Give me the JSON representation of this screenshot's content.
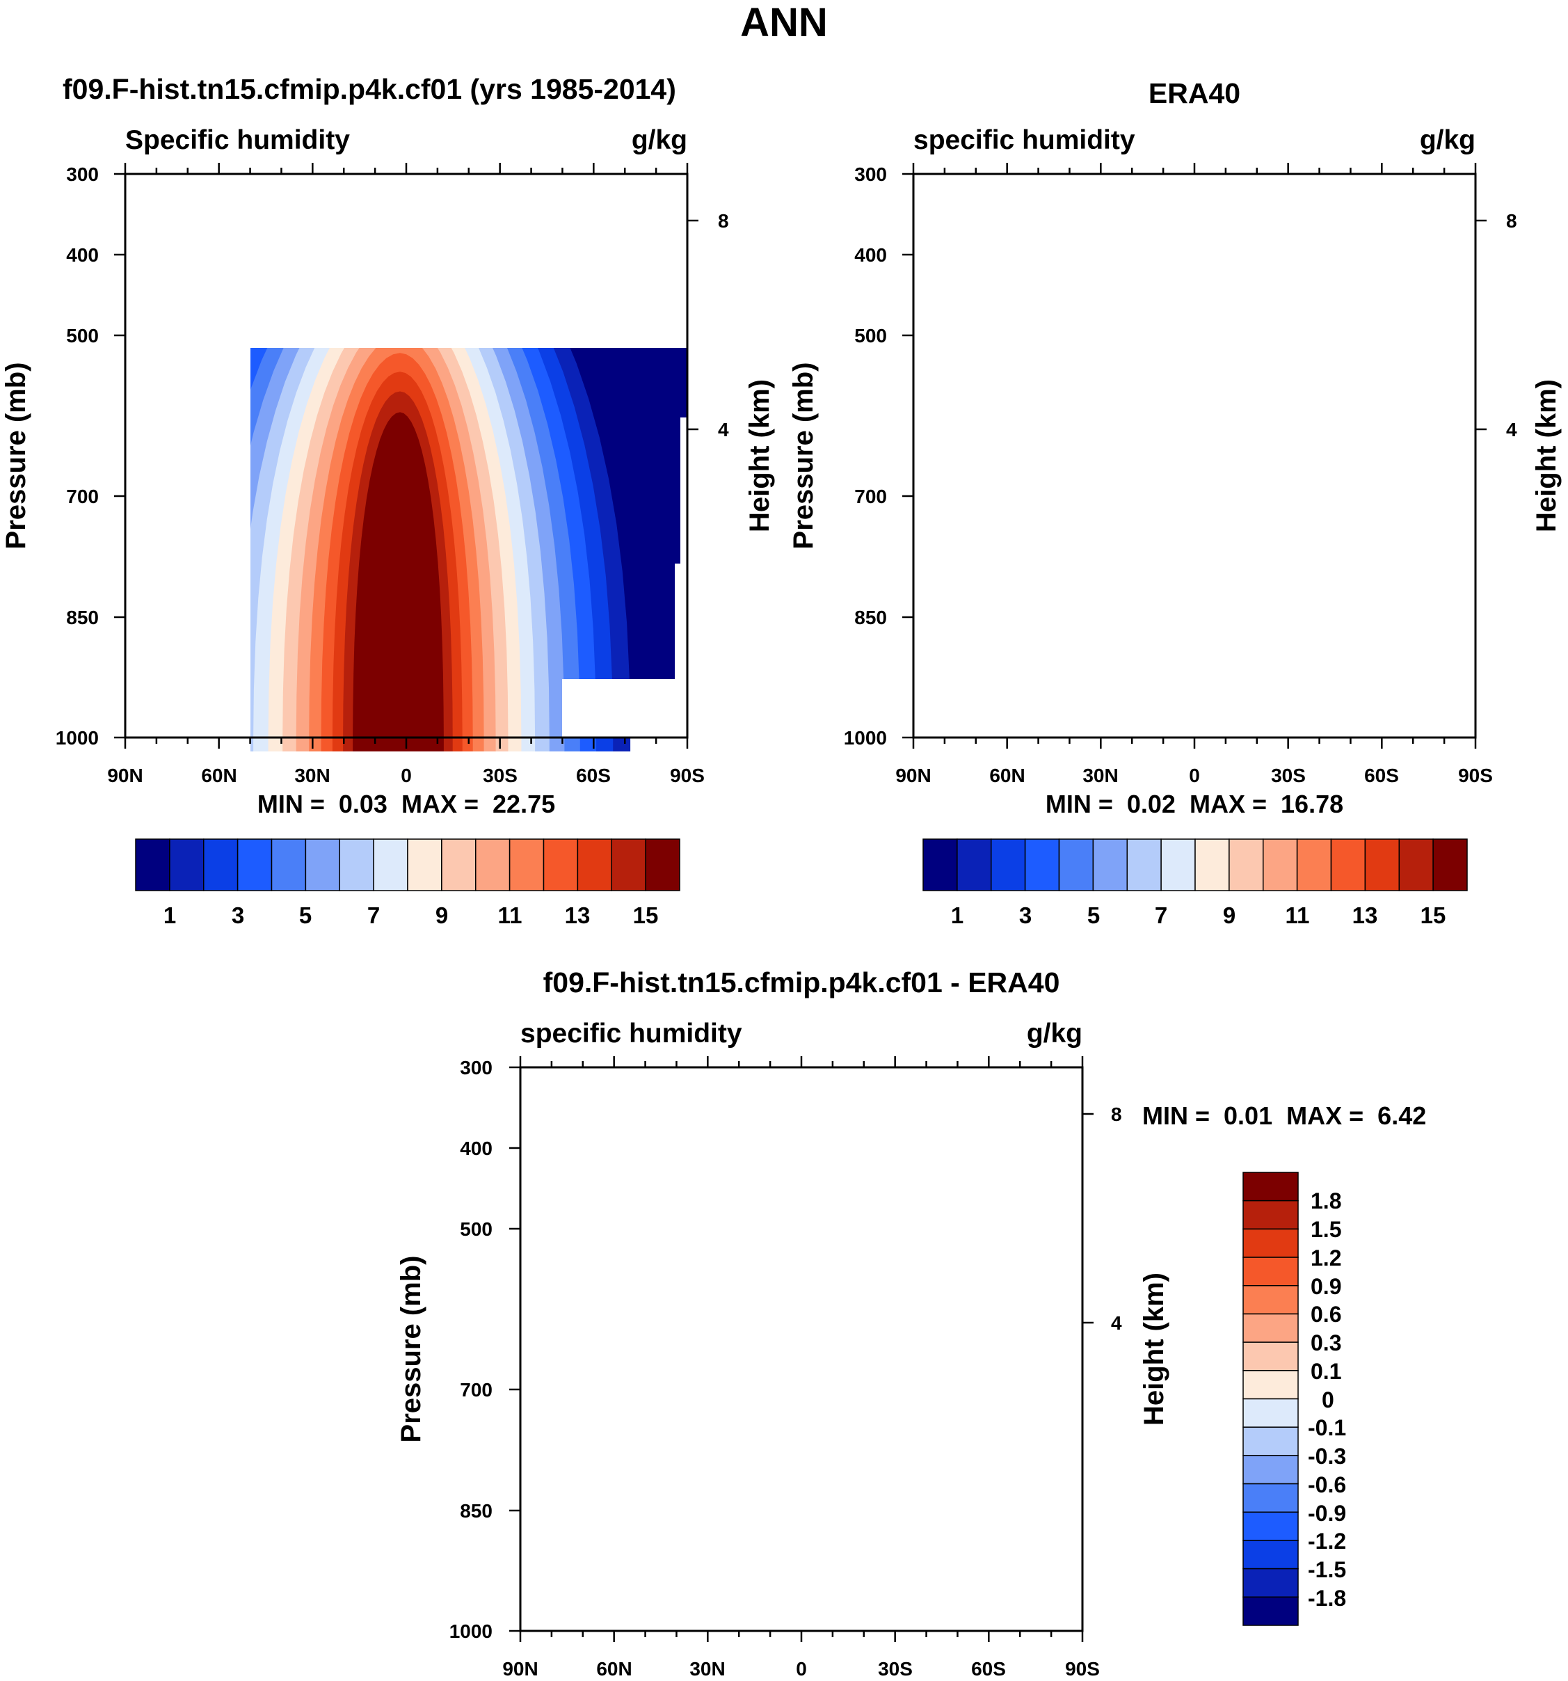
{
  "title": "ANN",
  "chart_data": [
    {
      "type": "contour",
      "title": "f09.F-hist.tn15.cfmip.p4k.cf01 (yrs 1985-2014)",
      "variable": "Specific humidity",
      "units": "g/kg",
      "ylabel": "Pressure (mb)",
      "ylabel_right": "Height (km)",
      "xticks": [
        "90N",
        "60N",
        "30N",
        "0",
        "30S",
        "60S",
        "90S"
      ],
      "yticks": [
        "300",
        "400",
        "500",
        "700",
        "850",
        "1000"
      ],
      "height_ticks": [
        "8",
        "4"
      ],
      "min_label": "MIN =",
      "min_value": "0.03",
      "max_label": "MAX =",
      "max_value": "22.75",
      "peak_value": 22.75,
      "colorbar_ticks": [
        "1",
        "3",
        "5",
        "7",
        "9",
        "11",
        "13",
        "15"
      ]
    },
    {
      "type": "contour",
      "title": "ERA40",
      "variable": "specific humidity",
      "units": "g/kg",
      "ylabel": "Pressure (mb)",
      "ylabel_right": "Height (km)",
      "xticks": [
        "90N",
        "60N",
        "30N",
        "0",
        "30S",
        "60S",
        "90S"
      ],
      "yticks": [
        "300",
        "400",
        "500",
        "700",
        "850",
        "1000"
      ],
      "height_ticks": [
        "8",
        "4"
      ],
      "min_label": "MIN =",
      "min_value": "0.02",
      "max_label": "MAX =",
      "max_value": "16.78",
      "peak_value": 16.78,
      "colorbar_ticks": [
        "1",
        "3",
        "5",
        "7",
        "9",
        "11",
        "13",
        "15"
      ]
    },
    {
      "type": "contour",
      "title": "f09.F-hist.tn15.cfmip.p4k.cf01 - ERA40",
      "variable": "specific humidity",
      "units": "g/kg",
      "ylabel": "Pressure (mb)",
      "ylabel_right": "Height (km)",
      "xticks": [
        "90N",
        "60N",
        "30N",
        "0",
        "30S",
        "60S",
        "90S"
      ],
      "yticks": [
        "300",
        "400",
        "500",
        "700",
        "850",
        "1000"
      ],
      "height_ticks": [
        "8",
        "4"
      ],
      "min_label": "MIN =",
      "min_value": "0.01",
      "max_label": "MAX =",
      "max_value": "6.42",
      "peak_value": 6.42,
      "colorbar_ticks": [
        "1.8",
        "1.5",
        "1.2",
        "0.9",
        "0.6",
        "0.3",
        "0.1",
        "0",
        "-0.1",
        "-0.3",
        "-0.6",
        "-0.9",
        "-1.2",
        "-1.5",
        "-1.8"
      ]
    }
  ],
  "colors": {
    "abs_scale": [
      "#00007F",
      "#0A22B7",
      "#0B3FE6",
      "#1D5CFF",
      "#4A7FF8",
      "#7FA3F8",
      "#B4CCFA",
      "#DDEAFB",
      "#FDEBDB",
      "#FCC8B0",
      "#FCA584",
      "#FB7F52",
      "#F5582A",
      "#E13A12",
      "#B6200C",
      "#7C0000"
    ],
    "diff_scale": [
      "#7C0000",
      "#B6200C",
      "#E13A12",
      "#F5582A",
      "#FB7F52",
      "#FCA584",
      "#FCC8B0",
      "#FDEBDB",
      "#DDEAFB",
      "#B4CCFA",
      "#7FA3F8",
      "#4A7FF8",
      "#1D5CFF",
      "#0B3FE6",
      "#0A22B7",
      "#00007F"
    ]
  }
}
